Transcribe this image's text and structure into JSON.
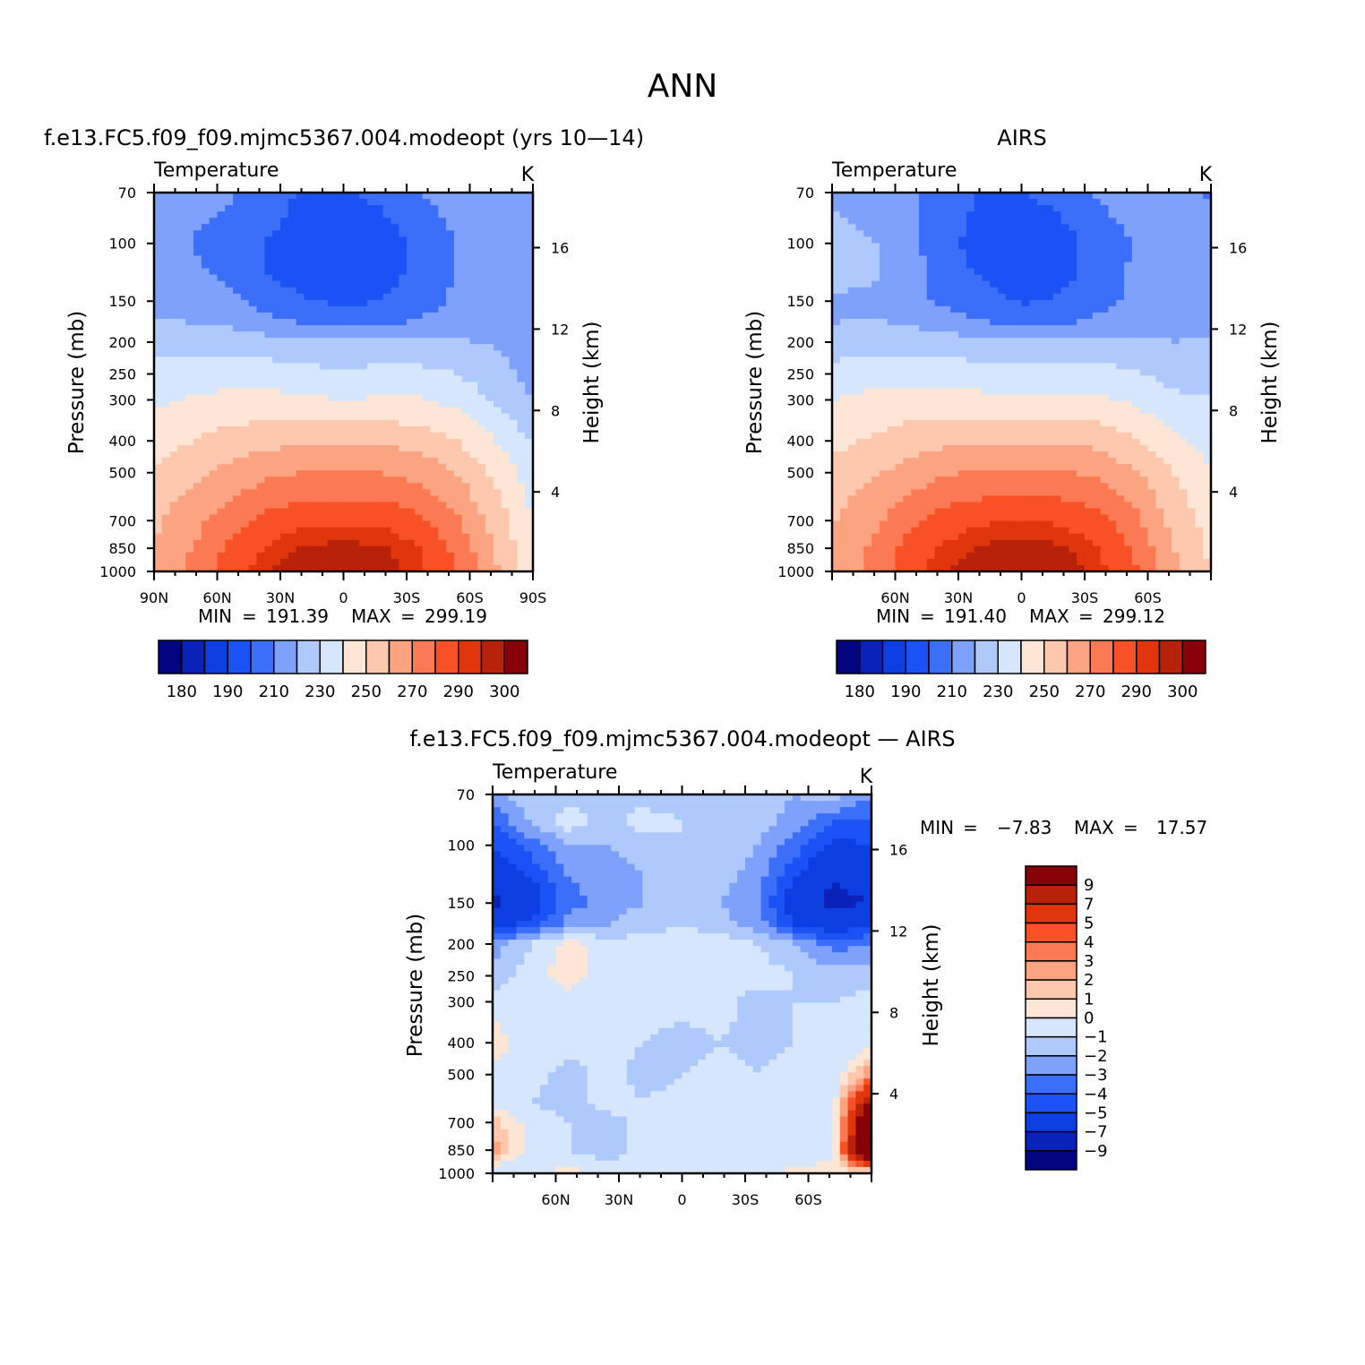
{
  "page": {
    "title": "ANN"
  },
  "colors": {
    "abs_palette": [
      "#03047f",
      "#0a22b7",
      "#0d3ee2",
      "#1a52f6",
      "#3b6ef9",
      "#7ea1fb",
      "#b0c9fd",
      "#d5e6fd",
      "#fee6d6",
      "#fdc8ad",
      "#fca481",
      "#fb7a54",
      "#f95126",
      "#e1350c",
      "#b9220a",
      "#860208"
    ],
    "diff_palette": [
      "#03047f",
      "#0a22b7",
      "#0d3ee2",
      "#1a52f6",
      "#3b6ef9",
      "#7ea1fb",
      "#b0c9fd",
      "#d5e6fd",
      "#fee6d6",
      "#fdc8ad",
      "#fca481",
      "#fb7a54",
      "#f95126",
      "#e1350c",
      "#b9220a",
      "#860208"
    ]
  },
  "panels": {
    "model": {
      "title": "f.e13.FC5.f09_f09.mjmc5367.004.modeopt (yrs 10—14)",
      "variable": "Temperature",
      "units": "K",
      "ylabel_left": "Pressure (mb)",
      "ylabel_right": "Height (km)",
      "pressure_ticks": [
        "70",
        "100",
        "150",
        "200",
        "250",
        "300",
        "400",
        "500",
        "700",
        "850",
        "1000"
      ],
      "height_ticks": [
        "16",
        "12",
        "8",
        "4"
      ],
      "lat_ticks": [
        "90N",
        "60N",
        "30N",
        "0",
        "30S",
        "60S",
        "90S"
      ],
      "min_label": "MIN",
      "min_value": "191.39",
      "max_label": "MAX",
      "max_value": "299.19",
      "colorbar_labels": [
        "180",
        "190",
        "210",
        "230",
        "250",
        "270",
        "290",
        "300"
      ]
    },
    "obs": {
      "title": "AIRS",
      "variable": "Temperature",
      "units": "K",
      "ylabel_left": "Pressure (mb)",
      "ylabel_right": "Height (km)",
      "pressure_ticks": [
        "70",
        "100",
        "150",
        "200",
        "250",
        "300",
        "400",
        "500",
        "700",
        "850",
        "1000"
      ],
      "height_ticks": [
        "16",
        "12",
        "8",
        "4"
      ],
      "lat_ticks": [
        "60N",
        "30N",
        "0",
        "30S",
        "60S"
      ],
      "min_label": "MIN",
      "min_value": "191.40",
      "max_label": "MAX",
      "max_value": "299.12",
      "colorbar_labels": [
        "180",
        "190",
        "210",
        "230",
        "250",
        "270",
        "290",
        "300"
      ]
    },
    "diff": {
      "title": "f.e13.FC5.f09_f09.mjmc5367.004.modeopt — AIRS",
      "variable": "Temperature",
      "units": "K",
      "ylabel_left": "Pressure (mb)",
      "ylabel_right": "Height (km)",
      "pressure_ticks": [
        "70",
        "100",
        "150",
        "200",
        "250",
        "300",
        "400",
        "500",
        "700",
        "850",
        "1000"
      ],
      "height_ticks": [
        "16",
        "12",
        "8",
        "4"
      ],
      "lat_ticks": [
        "60N",
        "30N",
        "0",
        "30S",
        "60S"
      ],
      "min_label": "MIN",
      "min_value": "−7.83",
      "max_label": "MAX",
      "max_value": "17.57",
      "colorbar_labels": [
        "9",
        "7",
        "5",
        "4",
        "3",
        "2",
        "1",
        "0",
        "−1",
        "−2",
        "−3",
        "−4",
        "−5",
        "−7",
        "−9"
      ]
    }
  },
  "chart_data": [
    {
      "type": "heatmap",
      "title": "f.e13.FC5.f09_f09.mjmc5367.004.modeopt (yrs 10—14)",
      "variable": "Temperature",
      "units": "K",
      "xlabel": "",
      "ylabel": "Pressure (mb)",
      "ylabel_right": "Height (km)",
      "x": [
        -90,
        -60,
        -30,
        0,
        30,
        60,
        90
      ],
      "y": [
        70,
        100,
        150,
        200,
        250,
        300,
        400,
        500,
        700,
        850,
        1000
      ],
      "contour_levels": [
        180,
        185,
        190,
        200,
        210,
        220,
        230,
        240,
        250,
        260,
        270,
        280,
        290,
        295,
        300
      ],
      "colorbar_labels": [
        "180",
        "190",
        "210",
        "230",
        "250",
        "270",
        "290",
        "300"
      ],
      "z": [
        [
          213,
          213,
          211,
          205,
          198,
          198,
          203,
          210,
          214,
          218,
          218
        ],
        [
          213,
          211,
          209,
          203,
          196,
          194,
          198,
          206,
          212,
          217,
          215
        ],
        [
          214,
          210,
          206,
          199,
          194,
          192,
          195,
          202,
          210,
          216,
          214
        ],
        [
          215,
          212,
          208,
          200,
          195,
          193,
          196,
          203,
          211,
          217,
          214
        ],
        [
          218,
          216,
          212,
          206,
          201,
          198,
          200,
          206,
          212,
          217,
          215
        ],
        [
          221,
          220,
          218,
          213,
          209,
          207,
          208,
          211,
          214,
          216,
          214
        ],
        [
          227,
          227,
          226,
          224,
          222,
          221,
          222,
          222,
          221,
          219,
          215
        ],
        [
          233,
          235,
          236,
          235,
          233,
          232,
          233,
          233,
          230,
          224,
          217
        ],
        [
          238,
          241,
          243,
          243,
          242,
          240,
          241,
          241,
          237,
          229,
          220
        ],
        [
          245,
          250,
          254,
          257,
          258,
          258,
          258,
          256,
          250,
          240,
          229
        ],
        [
          252,
          257,
          263,
          268,
          270,
          270,
          270,
          267,
          260,
          248,
          234
        ],
        [
          256,
          262,
          270,
          276,
          279,
          280,
          279,
          275,
          266,
          252,
          237
        ],
        [
          258,
          266,
          276,
          284,
          288,
          289,
          288,
          283,
          272,
          256,
          241
        ],
        [
          260,
          270,
          282,
          291,
          296,
          297,
          296,
          290,
          277,
          259,
          241
        ],
        [
          262,
          272,
          285,
          295,
          299,
          299,
          299,
          292,
          280,
          262,
          242
        ]
      ],
      "y_fine_pressure": [
        70,
        85,
        100,
        125,
        150,
        175,
        200,
        250,
        300,
        400,
        500,
        600,
        700,
        850,
        1000
      ],
      "ylim": [
        1000,
        70
      ],
      "xlim": [
        -90,
        90
      ],
      "y_scale": "log",
      "y_right_ticks_km": [
        16,
        12,
        8,
        4
      ]
    },
    {
      "type": "heatmap",
      "title": "AIRS",
      "variable": "Temperature",
      "units": "K",
      "xlabel": "",
      "ylabel": "Pressure (mb)",
      "ylabel_right": "Height (km)",
      "x": [
        -90,
        -60,
        -30,
        0,
        30,
        60,
        90
      ],
      "y": [
        70,
        100,
        150,
        200,
        250,
        300,
        400,
        500,
        700,
        850,
        1000
      ],
      "contour_levels": [
        180,
        185,
        190,
        200,
        210,
        220,
        230,
        240,
        250,
        260,
        270,
        280,
        290,
        295,
        300
      ],
      "colorbar_labels": [
        "180",
        "190",
        "210",
        "230",
        "250",
        "270",
        "290",
        "300"
      ],
      "z": [
        [
          214,
          214,
          212,
          206,
          199,
          199,
          204,
          211,
          215,
          217,
          209
        ],
        [
          222,
          218,
          212,
          204,
          197,
          195,
          199,
          207,
          213,
          216,
          210
        ],
        [
          224,
          221,
          214,
          202,
          197,
          193,
          196,
          203,
          211,
          215,
          213
        ],
        [
          224,
          222,
          216,
          203,
          199,
          194,
          197,
          204,
          212,
          216,
          213
        ],
        [
          218,
          217,
          213,
          208,
          203,
          199,
          201,
          207,
          212,
          216,
          214
        ],
        [
          220,
          221,
          219,
          215,
          211,
          208,
          209,
          212,
          215,
          216,
          216
        ],
        [
          226,
          227,
          226,
          225,
          223,
          222,
          223,
          223,
          222,
          220,
          221
        ],
        [
          232,
          235,
          236,
          236,
          234,
          233,
          234,
          234,
          231,
          226,
          227
        ],
        [
          240,
          243,
          244,
          244,
          243,
          241,
          242,
          242,
          238,
          232,
          231
        ],
        [
          247,
          251,
          255,
          258,
          259,
          259,
          259,
          257,
          251,
          242,
          236
        ],
        [
          253,
          258,
          264,
          269,
          271,
          271,
          271,
          268,
          261,
          250,
          240
        ],
        [
          257,
          263,
          271,
          277,
          280,
          281,
          280,
          276,
          267,
          254,
          243
        ],
        [
          259,
          267,
          277,
          285,
          289,
          290,
          289,
          284,
          273,
          257,
          246
        ],
        [
          261,
          271,
          283,
          292,
          296,
          298,
          296,
          291,
          278,
          260,
          248
        ],
        [
          262,
          273,
          286,
          295,
          299,
          299,
          299,
          293,
          281,
          264,
          250
        ]
      ],
      "y_fine_pressure": [
        70,
        85,
        100,
        125,
        150,
        175,
        200,
        250,
        300,
        400,
        500,
        600,
        700,
        850,
        1000
      ],
      "ylim": [
        1000,
        70
      ],
      "xlim": [
        -90,
        90
      ],
      "y_scale": "log",
      "y_right_ticks_km": [
        16,
        12,
        8,
        4
      ]
    },
    {
      "type": "heatmap",
      "title": "f.e13.FC5.f09_f09.mjmc5367.004.modeopt — AIRS",
      "variable": "Temperature",
      "units": "K",
      "xlabel": "",
      "ylabel": "Pressure (mb)",
      "ylabel_right": "Height (km)",
      "x": [
        -90,
        -60,
        -30,
        0,
        30,
        60,
        90
      ],
      "y": [
        70,
        100,
        150,
        200,
        250,
        300,
        400,
        500,
        700,
        850,
        1000
      ],
      "contour_levels": [
        -9,
        -7,
        -5,
        -4,
        -3,
        -2,
        -1,
        0,
        1,
        2,
        3,
        4,
        5,
        7,
        9
      ],
      "colorbar_labels": [
        "9",
        "7",
        "5",
        "4",
        "3",
        "2",
        "1",
        "0",
        "−1",
        "−2",
        "−3",
        "−4",
        "−5",
        "−7",
        "−9"
      ],
      "z": [
        [
          -2.5,
          -1.0,
          -1.5,
          -1.0,
          -1.5,
          -1.5,
          -1.0,
          -1.5,
          -2.0,
          -1.5,
          -3.0
        ],
        [
          -4.0,
          -2.0,
          -0.5,
          -1.5,
          -0.5,
          -1.0,
          -1.0,
          -1.5,
          -2.5,
          -4.0,
          -4.0
        ],
        [
          -5.0,
          -3.5,
          -2.0,
          -2.0,
          -1.5,
          -1.0,
          -1.5,
          -2.0,
          -3.5,
          -5.5,
          -5.0
        ],
        [
          -6.5,
          -5.0,
          -3.0,
          -2.5,
          -2.0,
          -1.5,
          -1.5,
          -2.5,
          -5.0,
          -7.0,
          -6.0
        ],
        [
          -7.5,
          -6.0,
          -3.5,
          -2.5,
          -2.0,
          -1.5,
          -2.0,
          -3.0,
          -6.0,
          -7.5,
          -7.0
        ],
        [
          -5.5,
          -4.5,
          -2.5,
          -2.0,
          -1.5,
          -1.0,
          -1.5,
          -2.5,
          -5.0,
          -6.0,
          -5.0
        ],
        [
          -2.5,
          -1.0,
          0.5,
          -0.5,
          -0.5,
          -0.5,
          -0.5,
          -1.0,
          -2.0,
          -3.5,
          -3.0
        ],
        [
          -1.5,
          -0.5,
          0.5,
          -0.5,
          -0.5,
          -0.5,
          -0.5,
          -0.5,
          -1.0,
          -1.5,
          -1.5
        ],
        [
          -0.5,
          -0.5,
          -0.5,
          -0.5,
          -0.5,
          -0.5,
          -0.5,
          -1.5,
          -1.0,
          -1.0,
          -0.5
        ],
        [
          0.5,
          -0.5,
          -0.5,
          -0.5,
          -1.0,
          -1.5,
          -1.0,
          -1.5,
          -1.0,
          -1.0,
          -0.5
        ],
        [
          -0.5,
          -0.5,
          -1.5,
          -0.5,
          -1.5,
          -1.0,
          -0.5,
          -1.0,
          -0.5,
          -1.0,
          3.0
        ],
        [
          -0.5,
          -1.0,
          -1.5,
          -0.5,
          -1.0,
          -0.5,
          -0.5,
          -1.0,
          -1.0,
          -0.5,
          9.0
        ],
        [
          1.5,
          -0.5,
          -1.0,
          -1.5,
          -0.5,
          -0.5,
          -0.5,
          -1.0,
          -1.0,
          -0.5,
          14.0
        ],
        [
          2.5,
          -0.5,
          -1.0,
          -1.5,
          -0.5,
          -0.5,
          -0.5,
          -0.5,
          -1.0,
          -0.5,
          17.0
        ],
        [
          -1.5,
          -0.5,
          0.5,
          -0.5,
          -0.5,
          -0.5,
          -0.5,
          -0.5,
          0.5,
          0.5,
          -0.5
        ]
      ],
      "y_fine_pressure": [
        70,
        85,
        100,
        125,
        150,
        175,
        200,
        250,
        300,
        400,
        500,
        600,
        700,
        850,
        1000
      ],
      "ylim": [
        1000,
        70
      ],
      "xlim": [
        -90,
        90
      ],
      "y_scale": "log",
      "y_right_ticks_km": [
        16,
        12,
        8,
        4
      ]
    }
  ]
}
